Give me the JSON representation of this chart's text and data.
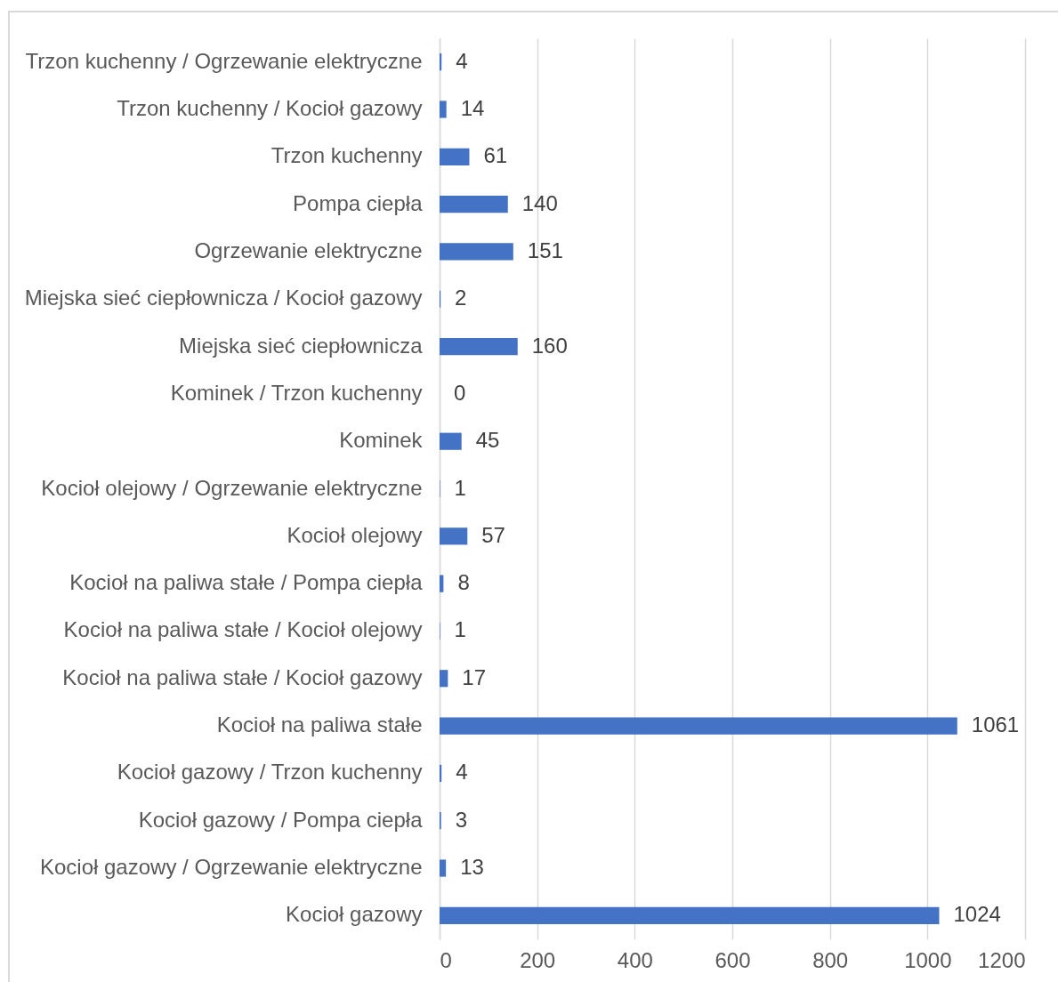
{
  "chart_data": {
    "type": "bar",
    "orientation": "horizontal",
    "categories": [
      "Trzon kuchenny / Ogrzewanie elektryczne",
      "Trzon kuchenny / Kocioł gazowy",
      "Trzon kuchenny",
      "Pompa ciepła",
      "Ogrzewanie elektryczne",
      "Miejska sieć ciepłownicza / Kocioł gazowy",
      "Miejska sieć ciepłownicza",
      "Kominek / Trzon kuchenny",
      "Kominek",
      "Kocioł olejowy / Ogrzewanie elektryczne",
      "Kocioł olejowy",
      "Kocioł na paliwa stałe / Pompa ciepła",
      "Kocioł na paliwa stałe / Kocioł olejowy",
      "Kocioł na paliwa stałe / Kocioł gazowy",
      "Kocioł na paliwa stałe",
      "Kocioł gazowy / Trzon kuchenny",
      "Kocioł gazowy / Pompa ciepła",
      "Kocioł gazowy / Ogrzewanie elektryczne",
      "Kocioł gazowy"
    ],
    "values": [
      4,
      14,
      61,
      140,
      151,
      2,
      160,
      0,
      45,
      1,
      57,
      8,
      1,
      17,
      1061,
      4,
      3,
      13,
      1024
    ],
    "color": "#4472c4",
    "xlim": [
      0,
      1200
    ],
    "xticks": [
      0,
      200,
      400,
      600,
      800,
      1000,
      1200
    ],
    "grid": "x",
    "data_labels": true
  }
}
